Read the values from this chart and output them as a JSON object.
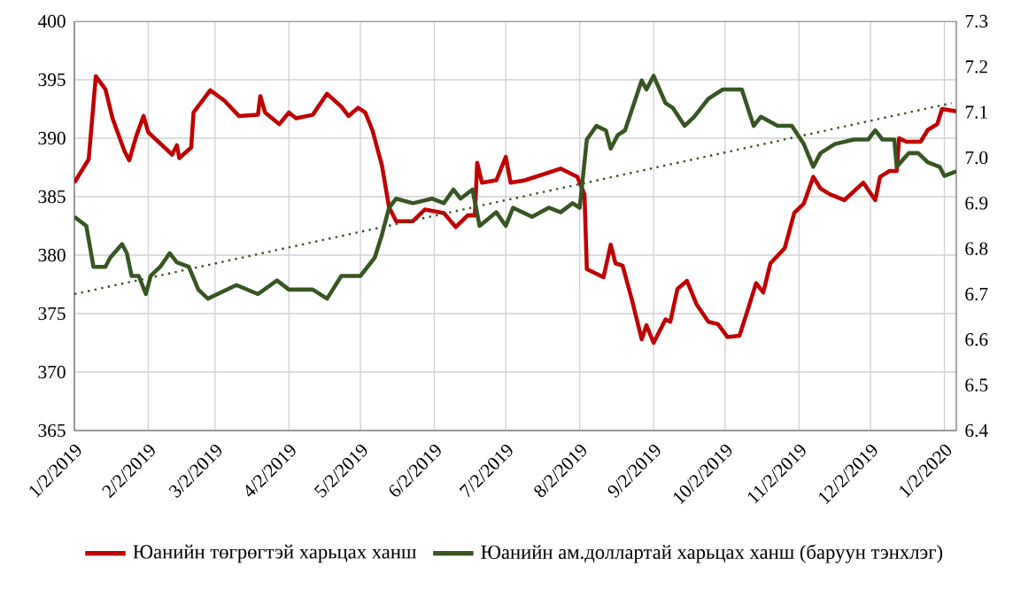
{
  "chart_data": {
    "type": "line",
    "xlim": [
      "2019-01-02",
      "2020-01-07"
    ],
    "xticks": [
      {
        "value": "2019-01-02",
        "label": "1/2/2019"
      },
      {
        "value": "2019-02-02",
        "label": "2/2/2019"
      },
      {
        "value": "2019-03-02",
        "label": "3/2/2019"
      },
      {
        "value": "2019-04-02",
        "label": "4/2/2019"
      },
      {
        "value": "2019-05-02",
        "label": "5/2/2019"
      },
      {
        "value": "2019-06-02",
        "label": "6/2/2019"
      },
      {
        "value": "2019-07-02",
        "label": "7/2/2019"
      },
      {
        "value": "2019-08-02",
        "label": "8/2/2019"
      },
      {
        "value": "2019-09-02",
        "label": "9/2/2019"
      },
      {
        "value": "2019-10-02",
        "label": "10/2/2019"
      },
      {
        "value": "2019-11-02",
        "label": "11/2/2019"
      },
      {
        "value": "2019-12-02",
        "label": "12/2/2019"
      },
      {
        "value": "2020-01-02",
        "label": "1/2/2020"
      }
    ],
    "ylim": [
      365,
      400
    ],
    "yticks": [
      365,
      370,
      375,
      380,
      385,
      390,
      395,
      400
    ],
    "y2lim": [
      6.4,
      7.3
    ],
    "y2ticks": [
      6.4,
      6.5,
      6.6,
      6.7,
      6.8,
      6.9,
      {
        "value": 7.0,
        "label": "7.0"
      },
      7.1,
      7.2,
      7.3
    ],
    "grid": true,
    "legend": "bottom",
    "line_style": "solid",
    "series": [
      {
        "name": "Юанийн төгрөгтэй харьцах ханш",
        "color": "#c00000",
        "x": [
          "2019-01-02",
          "2019-01-08",
          "2019-01-11",
          "2019-01-15",
          "2019-01-18",
          "2019-01-23",
          "2019-01-25",
          "2019-01-28",
          "2019-01-31",
          "2019-02-02",
          "2019-02-12",
          "2019-02-14",
          "2019-02-15",
          "2019-02-20",
          "2019-02-21",
          "2019-02-28",
          "2019-03-06",
          "2019-03-12",
          "2019-03-20",
          "2019-03-21",
          "2019-03-23",
          "2019-03-29",
          "2019-04-02",
          "2019-04-05",
          "2019-04-12",
          "2019-04-18",
          "2019-04-24",
          "2019-04-27",
          "2019-05-01",
          "2019-05-04",
          "2019-05-07",
          "2019-05-11",
          "2019-05-14",
          "2019-05-17",
          "2019-05-24",
          "2019-05-29",
          "2019-06-06",
          "2019-06-11",
          "2019-06-16",
          "2019-06-19",
          "2019-06-20",
          "2019-06-22",
          "2019-06-28",
          "2019-07-02",
          "2019-07-04",
          "2019-07-10",
          "2019-07-25",
          "2019-07-30",
          "2019-08-01",
          "2019-08-04",
          "2019-08-05",
          "2019-08-12",
          "2019-08-15",
          "2019-08-17",
          "2019-08-20",
          "2019-08-24",
          "2019-08-28",
          "2019-08-30",
          "2019-09-02",
          "2019-09-07",
          "2019-09-09",
          "2019-09-12",
          "2019-09-16",
          "2019-09-20",
          "2019-09-25",
          "2019-09-29",
          "2019-10-03",
          "2019-10-08",
          "2019-10-11",
          "2019-10-15",
          "2019-10-18",
          "2019-10-21",
          "2019-10-27",
          "2019-10-31",
          "2019-11-04",
          "2019-11-08",
          "2019-11-11",
          "2019-11-15",
          "2019-11-21",
          "2019-11-29",
          "2019-12-04",
          "2019-12-06",
          "2019-12-10",
          "2019-12-13",
          "2019-12-14",
          "2019-12-17",
          "2019-12-23",
          "2019-12-26",
          "2019-12-30",
          "2020-01-01",
          "2020-01-07"
        ],
        "values": [
          386.2,
          388.2,
          395.3,
          394.2,
          391.7,
          388.9,
          388.1,
          390.2,
          391.9,
          390.5,
          388.6,
          389.4,
          388.3,
          389.2,
          392.2,
          394.1,
          393.2,
          391.9,
          392.0,
          393.6,
          392.2,
          391.2,
          392.2,
          391.7,
          392.0,
          393.8,
          392.7,
          391.9,
          392.6,
          392.2,
          390.7,
          387.7,
          384.1,
          382.9,
          382.9,
          383.9,
          383.6,
          382.4,
          383.4,
          383.4,
          387.9,
          386.2,
          386.4,
          388.4,
          386.2,
          386.4,
          387.4,
          386.9,
          386.7,
          385.2,
          378.8,
          378.1,
          380.9,
          379.3,
          379.1,
          376.1,
          372.8,
          374.0,
          372.5,
          374.5,
          374.3,
          377.1,
          377.8,
          375.8,
          374.3,
          374.1,
          373.0,
          373.1,
          375.0,
          377.6,
          376.8,
          379.3,
          380.6,
          383.6,
          384.4,
          386.7,
          385.7,
          385.2,
          384.7,
          386.2,
          384.7,
          386.7,
          387.2,
          387.2,
          390.0,
          389.7,
          389.7,
          390.7,
          391.2,
          392.5,
          392.3
        ]
      },
      {
        "name": "Юанийн ам.доллартай харьцах ханш (баруун тэнхлэг)",
        "color": "#375623",
        "axis": "y2",
        "x": [
          "2019-01-02",
          "2019-01-07",
          "2019-01-10",
          "2019-01-15",
          "2019-01-17",
          "2019-01-22",
          "2019-01-24",
          "2019-01-26",
          "2019-01-29",
          "2019-02-01",
          "2019-02-03",
          "2019-02-07",
          "2019-02-11",
          "2019-02-14",
          "2019-02-19",
          "2019-02-23",
          "2019-02-27",
          "2019-03-03",
          "2019-03-11",
          "2019-03-20",
          "2019-03-28",
          "2019-04-02",
          "2019-04-12",
          "2019-04-18",
          "2019-04-24",
          "2019-05-02",
          "2019-05-08",
          "2019-05-11",
          "2019-05-14",
          "2019-05-17",
          "2019-05-24",
          "2019-06-01",
          "2019-06-06",
          "2019-06-10",
          "2019-06-13",
          "2019-06-18",
          "2019-06-21",
          "2019-06-28",
          "2019-07-02",
          "2019-07-05",
          "2019-07-13",
          "2019-07-20",
          "2019-07-25",
          "2019-07-30",
          "2019-08-02",
          "2019-08-05",
          "2019-08-09",
          "2019-08-13",
          "2019-08-15",
          "2019-08-18",
          "2019-08-21",
          "2019-08-28",
          "2019-08-30",
          "2019-09-02",
          "2019-09-07",
          "2019-09-10",
          "2019-09-15",
          "2019-09-19",
          "2019-09-25",
          "2019-10-01",
          "2019-10-09",
          "2019-10-14",
          "2019-10-17",
          "2019-10-24",
          "2019-10-30",
          "2019-11-04",
          "2019-11-08",
          "2019-11-11",
          "2019-11-17",
          "2019-11-25",
          "2019-12-01",
          "2019-12-04",
          "2019-12-07",
          "2019-12-12",
          "2019-12-13",
          "2019-12-18",
          "2019-12-22",
          "2019-12-26",
          "2019-12-31",
          "2020-01-02",
          "2020-01-07"
        ],
        "values": [
          6.87,
          6.85,
          6.76,
          6.76,
          6.78,
          6.81,
          6.79,
          6.74,
          6.74,
          6.7,
          6.74,
          6.76,
          6.79,
          6.77,
          6.76,
          6.71,
          6.69,
          6.7,
          6.72,
          6.7,
          6.73,
          6.71,
          6.71,
          6.69,
          6.74,
          6.74,
          6.78,
          6.83,
          6.89,
          6.91,
          6.9,
          6.91,
          6.9,
          6.93,
          6.91,
          6.93,
          6.85,
          6.88,
          6.85,
          6.89,
          6.87,
          6.89,
          6.88,
          6.9,
          6.89,
          7.04,
          7.07,
          7.06,
          7.02,
          7.05,
          7.06,
          7.17,
          7.15,
          7.18,
          7.12,
          7.11,
          7.07,
          7.09,
          7.13,
          7.15,
          7.15,
          7.07,
          7.09,
          7.07,
          7.07,
          7.03,
          6.98,
          7.01,
          7.03,
          7.04,
          7.04,
          7.06,
          7.04,
          7.04,
          6.98,
          7.01,
          7.01,
          6.99,
          6.98,
          6.96,
          6.97
        ]
      },
      {
        "color": "#375623",
        "axis": "y2",
        "line_style": "dotted",
        "x": [
          "2019-01-02",
          "2020-01-05"
        ],
        "values": [
          6.7,
          7.12
        ]
      }
    ]
  }
}
